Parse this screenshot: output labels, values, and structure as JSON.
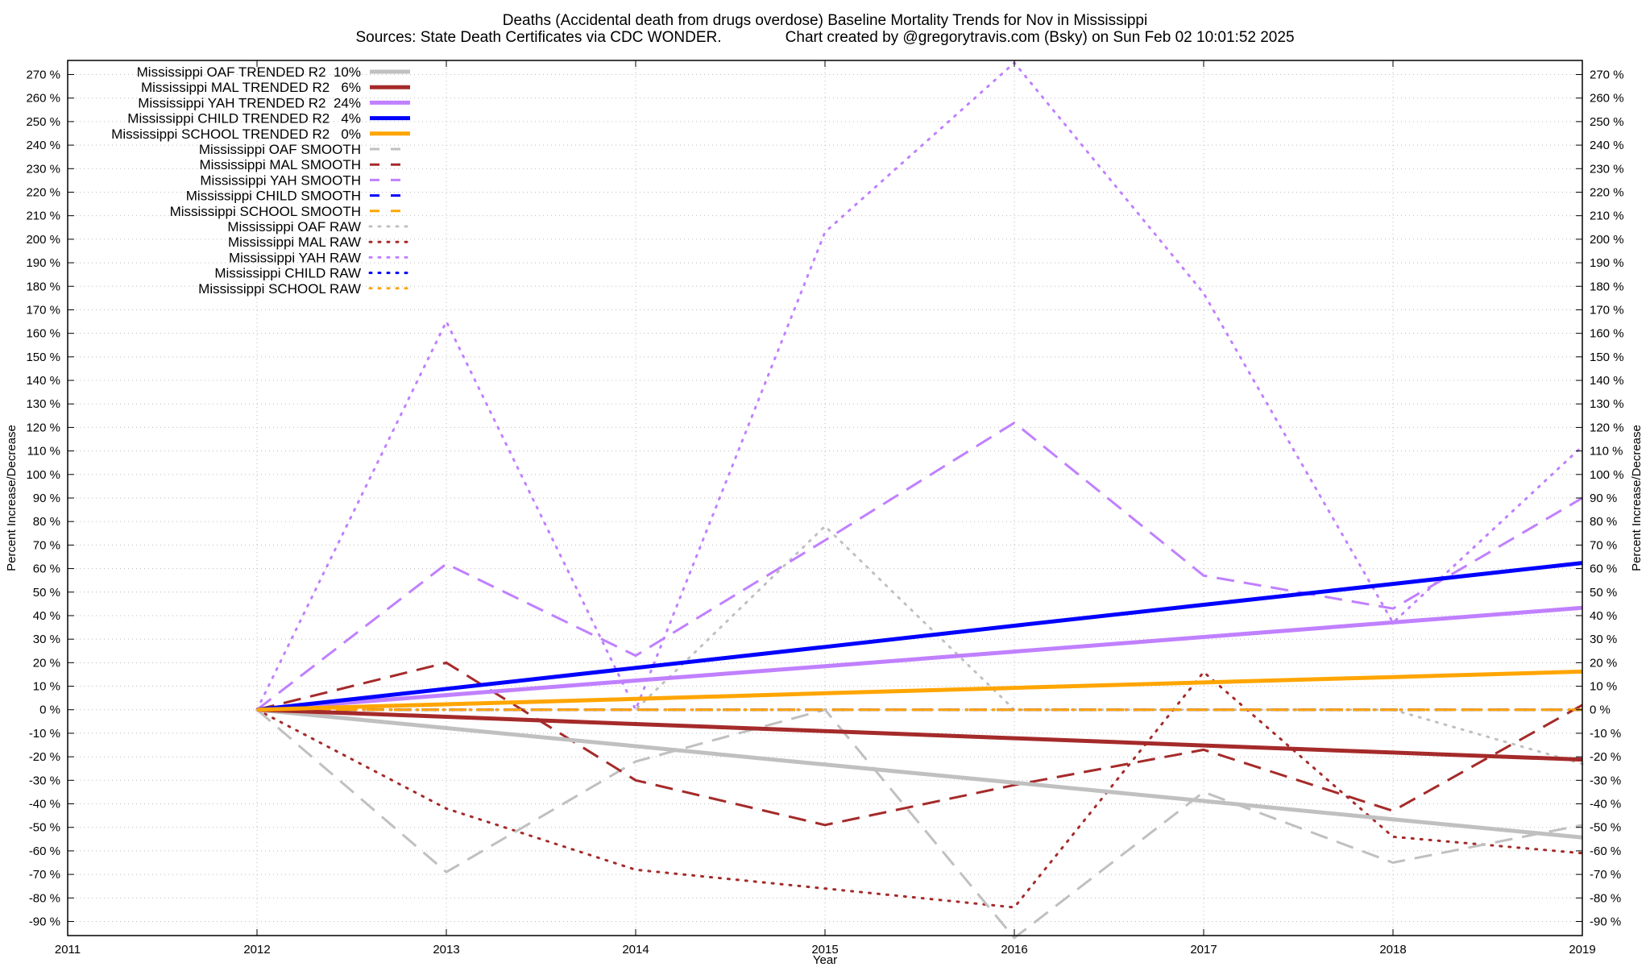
{
  "chart_data": {
    "type": "line",
    "title": "Deaths (Accidental death from drugs overdose)  Baseline Mortality Trends for Nov in Mississippi",
    "subtitle": "Sources: State Death Certificates via CDC WONDER.               Chart created by @gregorytravis.com (Bsky) on Sun Feb 02 10:01:52 2025",
    "xlabel": "Year",
    "ylabel": "Percent Increase/Decrease",
    "xlim": [
      2011,
      2019
    ],
    "ylim": [
      -96,
      276
    ],
    "x_ticks": [
      "2011",
      "2012",
      "2013",
      "2014",
      "2015",
      "2016",
      "2017",
      "2018",
      "2019"
    ],
    "y_ticks": [
      "270 %",
      "260 %",
      "250 %",
      "240 %",
      "230 %",
      "220 %",
      "210 %",
      "200 %",
      "190 %",
      "180 %",
      "170 %",
      "160 %",
      "150 %",
      "140 %",
      "130 %",
      "120 %",
      "110 %",
      "100 %",
      "90 %",
      "80 %",
      "70 %",
      "60 %",
      "50 %",
      "40 %",
      "30 %",
      "20 %",
      "10 %",
      "0 %",
      "-10 %",
      "-20 %",
      "-30 %",
      "-40 %",
      "-50 %",
      "-60 %",
      "-70 %",
      "-80 %",
      "-90 %"
    ],
    "grid": true,
    "legend_position": "top-left",
    "x": [
      2012,
      2013,
      2014,
      2015,
      2016,
      2017,
      2018,
      2019
    ],
    "series": [
      {
        "name": "Mississippi OAF TRENDED R2  10%",
        "color": "#c0c0c0",
        "style": "solid",
        "width": 5,
        "values": [
          0,
          -7.8,
          -15.5,
          -23.3,
          -31,
          -38.8,
          -46.6,
          -54.3
        ]
      },
      {
        "name": "Mississippi MAL TRENDED R2   6%",
        "color": "#a52a2a",
        "style": "solid",
        "width": 5,
        "values": [
          0,
          -3,
          -6.1,
          -9.1,
          -12.1,
          -15.2,
          -18.2,
          -21.2
        ]
      },
      {
        "name": "Mississippi YAH TRENDED R2  24%",
        "color": "#c080ff",
        "style": "solid",
        "width": 5,
        "values": [
          0,
          6.2,
          12.4,
          18.5,
          24.7,
          30.9,
          37.1,
          43.3
        ]
      },
      {
        "name": "Mississippi CHILD TRENDED R2   4%",
        "color": "#0000ff",
        "style": "solid",
        "width": 5,
        "values": [
          0,
          8.9,
          17.8,
          26.7,
          35.7,
          44.6,
          53.5,
          62.4
        ]
      },
      {
        "name": "Mississippi SCHOOL TRENDED R2   0%",
        "color": "#ffa500",
        "style": "solid",
        "width": 5,
        "values": [
          0,
          2.3,
          4.6,
          7,
          9.3,
          11.6,
          13.9,
          16.2
        ]
      },
      {
        "name": "Mississippi OAF SMOOTH",
        "color": "#c0c0c0",
        "style": "dashed",
        "width": 3,
        "values": [
          0,
          -69,
          -22,
          0,
          -97,
          -35,
          -65,
          -49
        ]
      },
      {
        "name": "Mississippi MAL SMOOTH",
        "color": "#a52a2a",
        "style": "dashed",
        "width": 3,
        "values": [
          0,
          20,
          -30,
          -49,
          -32,
          -17,
          -43,
          2
        ]
      },
      {
        "name": "Mississippi YAH SMOOTH",
        "color": "#c080ff",
        "style": "dashed",
        "width": 3,
        "values": [
          0,
          62,
          23,
          72,
          122,
          57,
          43,
          90
        ]
      },
      {
        "name": "Mississippi CHILD SMOOTH",
        "color": "#0000ff",
        "style": "dashed",
        "width": 3,
        "values": [
          0,
          0,
          0,
          0,
          0,
          0,
          0,
          0
        ]
      },
      {
        "name": "Mississippi SCHOOL SMOOTH",
        "color": "#ffa500",
        "style": "dashed",
        "width": 3,
        "values": [
          0,
          0,
          0,
          0,
          0,
          0,
          0,
          0
        ]
      },
      {
        "name": "Mississippi OAF RAW",
        "color": "#c0c0c0",
        "style": "dotted",
        "width": 3,
        "values": [
          0,
          0,
          0,
          78,
          0,
          0,
          0,
          -23
        ]
      },
      {
        "name": "Mississippi MAL RAW",
        "color": "#a52a2a",
        "style": "dotted",
        "width": 3,
        "values": [
          0,
          -42,
          -68,
          -76,
          -84,
          16,
          -54,
          -61
        ]
      },
      {
        "name": "Mississippi YAH RAW",
        "color": "#c080ff",
        "style": "dotted",
        "width": 3,
        "values": [
          0,
          165,
          0,
          203,
          275,
          177,
          37,
          112
        ]
      },
      {
        "name": "Mississippi CHILD RAW",
        "color": "#0000ff",
        "style": "dotted",
        "width": 3,
        "values": [
          0,
          0,
          0,
          0,
          0,
          0,
          0,
          0
        ]
      },
      {
        "name": "Mississippi SCHOOL RAW",
        "color": "#ffa500",
        "style": "dotted",
        "width": 3,
        "values": [
          0,
          0,
          0,
          0,
          0,
          0,
          0,
          0
        ]
      }
    ]
  }
}
